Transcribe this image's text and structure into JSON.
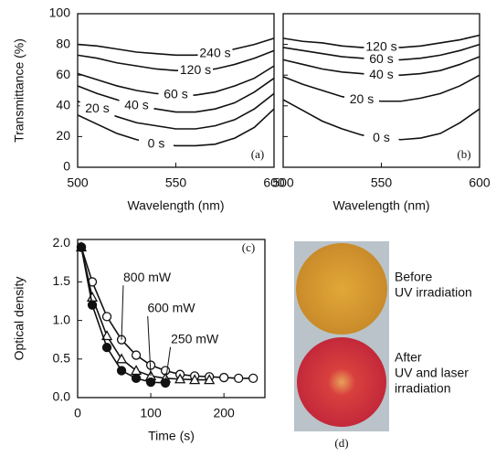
{
  "chart_data": [
    {
      "type": "line",
      "label": "(a)",
      "xlabel": "Wavelength (nm)",
      "ylabel": "Transmittance (%)",
      "xlim": [
        500,
        600
      ],
      "xticks": [
        500,
        550,
        600
      ],
      "ylim": [
        0,
        100
      ],
      "yticks": [
        0,
        20,
        40,
        60,
        80,
        100
      ],
      "show_ytick_labels": true,
      "x": [
        500,
        510,
        520,
        530,
        540,
        550,
        560,
        570,
        580,
        590,
        600
      ],
      "series": [
        {
          "name": "240 s",
          "color": "#111111",
          "values": [
            80,
            79,
            77,
            75,
            74,
            73,
            73,
            74,
            77,
            80,
            84
          ]
        },
        {
          "name": "120 s",
          "color": "#111111",
          "values": [
            73,
            71,
            68,
            66,
            64,
            63,
            63,
            64,
            67,
            71,
            76
          ]
        },
        {
          "name": "60 s",
          "color": "#111111",
          "values": [
            61,
            57,
            53,
            50,
            48,
            47,
            47,
            49,
            53,
            58,
            66
          ]
        },
        {
          "name": "40 s",
          "color": "#111111",
          "values": [
            53,
            48,
            44,
            40,
            38,
            36,
            36,
            38,
            42,
            49,
            58
          ]
        },
        {
          "name": "20 s",
          "color": "#111111",
          "values": [
            43,
            38,
            33,
            29,
            27,
            25,
            25,
            27,
            31,
            38,
            48
          ]
        },
        {
          "name": "0 s",
          "color": "#111111",
          "values": [
            34,
            28,
            22,
            18,
            15,
            14,
            14,
            15,
            19,
            26,
            38
          ]
        }
      ]
    },
    {
      "type": "line",
      "label": "(b)",
      "xlabel": "Wavelength (nm)",
      "xlim": [
        500,
        600
      ],
      "xticks": [
        500,
        550,
        600
      ],
      "ylim": [
        0,
        100
      ],
      "yticks": [
        0,
        20,
        40,
        60,
        80,
        100
      ],
      "show_ytick_labels": false,
      "x": [
        500,
        510,
        520,
        530,
        540,
        550,
        560,
        570,
        580,
        590,
        600
      ],
      "series": [
        {
          "name": "120 s",
          "color": "#111111",
          "values": [
            84,
            82,
            81,
            79,
            78,
            78,
            78,
            79,
            81,
            83,
            86
          ]
        },
        {
          "name": "60 s",
          "color": "#111111",
          "values": [
            78,
            76,
            74,
            72,
            71,
            70,
            70,
            71,
            73,
            76,
            80
          ]
        },
        {
          "name": "40 s",
          "color": "#111111",
          "values": [
            70,
            67,
            64,
            62,
            61,
            60,
            60,
            61,
            63,
            67,
            72
          ]
        },
        {
          "name": "20 s",
          "color": "#111111",
          "values": [
            59,
            54,
            50,
            46,
            44,
            43,
            43,
            45,
            48,
            53,
            60
          ]
        },
        {
          "name": "0 s",
          "color": "#111111",
          "values": [
            44,
            37,
            30,
            25,
            21,
            19,
            18,
            19,
            22,
            29,
            38
          ]
        }
      ]
    },
    {
      "type": "scatter-line",
      "label": "(c)",
      "xlabel": "Time (s)",
      "ylabel": "Optical density",
      "xlim": [
        0,
        256
      ],
      "xticks": [
        0,
        100,
        200
      ],
      "ylim": [
        0,
        2.05
      ],
      "yticks": [
        {
          "value": 0,
          "label": "0.0"
        },
        0.5,
        {
          "value": 1,
          "label": "1.0"
        },
        1.5,
        {
          "value": 2,
          "label": "2.0"
        }
      ],
      "show_ytick_labels": true,
      "series": [
        {
          "name": "800 mW",
          "color": "#111111",
          "marker": "open-circle",
          "x": [
            5,
            20,
            40,
            60,
            80,
            100,
            120,
            140,
            160,
            180,
            200,
            220,
            240
          ],
          "values": [
            1.95,
            1.5,
            1.05,
            0.75,
            0.55,
            0.42,
            0.35,
            0.3,
            0.28,
            0.27,
            0.26,
            0.25,
            0.25
          ]
        },
        {
          "name": "600 mW",
          "color": "#111111",
          "marker": "open-triangle",
          "x": [
            5,
            20,
            40,
            60,
            80,
            100,
            120,
            140,
            160,
            180
          ],
          "values": [
            1.95,
            1.3,
            0.8,
            0.5,
            0.35,
            0.28,
            0.25,
            0.24,
            0.23,
            0.23
          ]
        },
        {
          "name": "250 mW",
          "color": "#111111",
          "marker": "filled-circle",
          "x": [
            5,
            20,
            40,
            60,
            80,
            100,
            120
          ],
          "values": [
            1.95,
            1.2,
            0.65,
            0.35,
            0.25,
            0.2,
            0.19
          ]
        }
      ]
    }
  ],
  "panel_d": {
    "label": "(d)",
    "captions": [
      [
        "Before",
        "UV irradiation"
      ],
      [
        "After",
        "UV and laser",
        "irradiation"
      ]
    ]
  }
}
